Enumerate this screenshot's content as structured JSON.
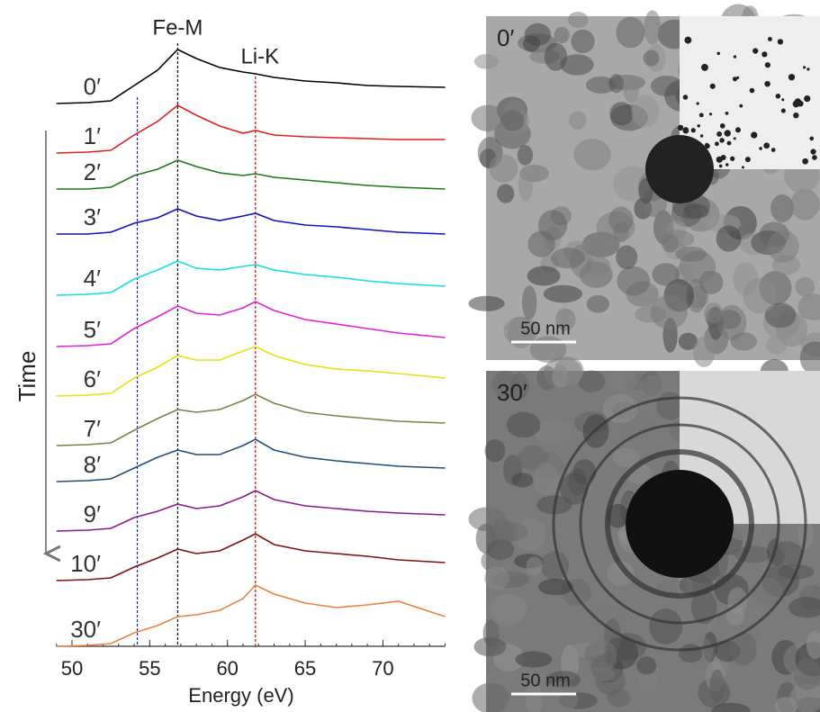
{
  "chart_data": {
    "type": "line",
    "x_label": "Energy (eV)",
    "y_label": "Time",
    "xlim": [
      49,
      74
    ],
    "xticks": [
      50,
      55,
      60,
      65,
      70
    ],
    "ylim": [
      0,
      680
    ],
    "x": [
      49,
      51,
      52.5,
      54,
      55.5,
      56.8,
      58,
      59.5,
      61,
      61.8,
      63,
      65,
      67,
      69,
      71,
      74
    ],
    "series": [
      {
        "name": "0′",
        "color": "#000000",
        "values": [
          603,
          604,
          606,
          623,
          640,
          663,
          653,
          643,
          638,
          636,
          632,
          628,
          626,
          623,
          622,
          621
        ]
      },
      {
        "name": "1′",
        "color": "#e02020",
        "values": [
          548,
          549,
          551,
          568,
          583,
          601,
          590,
          578,
          570,
          573,
          568,
          566,
          565,
          564,
          563,
          563
        ]
      },
      {
        "name": "2′",
        "color": "#1a7a1a",
        "values": [
          508,
          508,
          510,
          523,
          530,
          540,
          533,
          526,
          523,
          525,
          521,
          518,
          515,
          512,
          510,
          508
        ]
      },
      {
        "name": "3′",
        "color": "#1010c0",
        "values": [
          458,
          458,
          460,
          470,
          476,
          486,
          478,
          473,
          478,
          481,
          473,
          468,
          466,
          463,
          460,
          458
        ]
      },
      {
        "name": "4′",
        "color": "#10e0e0",
        "values": [
          390,
          391,
          393,
          408,
          418,
          428,
          420,
          418,
          422,
          424,
          418,
          413,
          410,
          406,
          403,
          400
        ]
      },
      {
        "name": "5′",
        "color": "#e020e0",
        "values": [
          333,
          334,
          336,
          353,
          366,
          378,
          370,
          368,
          376,
          383,
          373,
          363,
          358,
          353,
          348,
          343
        ]
      },
      {
        "name": "6′",
        "color": "#e8e010",
        "values": [
          278,
          279,
          281,
          298,
          310,
          323,
          318,
          318,
          328,
          333,
          323,
          313,
          308,
          306,
          303,
          298
        ]
      },
      {
        "name": "7′",
        "color": "#808048",
        "values": [
          223,
          224,
          226,
          240,
          253,
          263,
          260,
          263,
          273,
          280,
          270,
          260,
          256,
          253,
          250,
          248
        ]
      },
      {
        "name": "8′",
        "color": "#1f4e79",
        "values": [
          183,
          184,
          186,
          198,
          210,
          218,
          213,
          213,
          223,
          230,
          218,
          210,
          206,
          203,
          200,
          198
        ]
      },
      {
        "name": "9′",
        "color": "#8a1a8a",
        "values": [
          128,
          129,
          131,
          143,
          150,
          158,
          153,
          156,
          166,
          173,
          163,
          156,
          153,
          150,
          148,
          146
        ]
      },
      {
        "name": "10′",
        "color": "#801010",
        "values": [
          73,
          74,
          76,
          88,
          98,
          108,
          103,
          106,
          118,
          125,
          113,
          106,
          103,
          100,
          96,
          93
        ]
      },
      {
        "name": "30′",
        "color": "#f08040",
        "values": [
          0,
          1,
          3,
          15,
          23,
          33,
          35,
          40,
          53,
          68,
          58,
          48,
          43,
          46,
          50,
          33
        ]
      }
    ],
    "reference_lines": [
      {
        "x": 54.2,
        "color": "#2020c0"
      },
      {
        "x": 56.8,
        "color": "#000000",
        "label": "Fe-M"
      },
      {
        "x": 61.8,
        "color": "#c01010",
        "label": "Li-K"
      }
    ]
  },
  "micrographs": [
    {
      "label": "0′",
      "scale_bar": "50 nm"
    },
    {
      "label": "30′",
      "scale_bar": "50 nm"
    }
  ]
}
